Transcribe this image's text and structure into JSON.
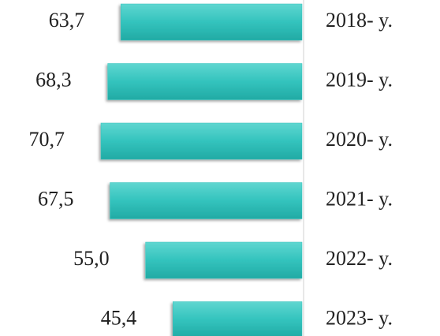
{
  "chart_data": {
    "type": "barh",
    "categories": [
      "2018- y.",
      "2019- y.",
      "2020- y.",
      "2021- y.",
      "2022- y.",
      "2023- y."
    ],
    "values": [
      63.7,
      68.3,
      70.7,
      67.5,
      55.0,
      45.4
    ],
    "value_labels": [
      "63,7",
      "68,3",
      "70,7",
      "67,5",
      "55,0",
      "45,4"
    ],
    "color": "#33c3bd"
  }
}
